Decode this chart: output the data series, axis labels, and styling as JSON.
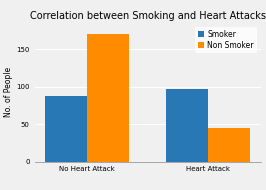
{
  "title": "Correlation between Smoking and Heart Attacks",
  "categories": [
    "No Heart Attack",
    "Heart Attack"
  ],
  "series": [
    {
      "label": "Smoker",
      "values": [
        88,
        97
      ],
      "color": "#2878b5"
    },
    {
      "label": "Non Smoker",
      "values": [
        170,
        45
      ],
      "color": "#ff8c00"
    }
  ],
  "ylabel": "No. of People",
  "ylim": [
    0,
    185
  ],
  "yticks": [
    0,
    50,
    100,
    150
  ],
  "bar_width": 0.35,
  "background_color": "#f0f0f0",
  "plot_bg_color": "#f0f0f0",
  "grid_color": "#ffffff",
  "title_fontsize": 7,
  "label_fontsize": 5.5,
  "tick_fontsize": 5,
  "legend_fontsize": 5.5
}
